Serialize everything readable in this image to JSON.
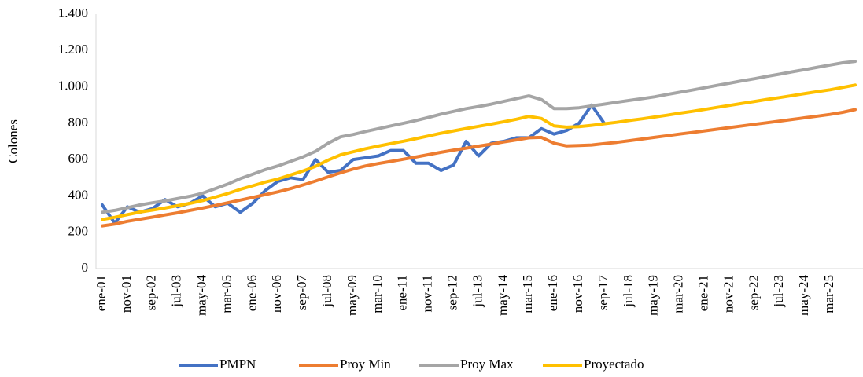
{
  "chart_data": {
    "type": "line",
    "ylabel": "Colones",
    "categories": [
      "ene-01",
      null,
      "nov-01",
      null,
      "sep-02",
      null,
      "jul-03",
      null,
      "may-04",
      null,
      "mar-05",
      null,
      "ene-06",
      null,
      "nov-06",
      null,
      "sep-07",
      null,
      "jul-08",
      null,
      "may-09",
      null,
      "mar-10",
      null,
      "ene-11",
      null,
      "nov-11",
      null,
      "sep-12",
      null,
      "jul-13",
      null,
      "may-14",
      null,
      "mar-15",
      null,
      "ene-16",
      null,
      "nov-16",
      null,
      "sep-17",
      null,
      "jul-18",
      null,
      "may-19",
      null,
      "mar-20",
      null,
      "ene-21",
      null,
      "nov-21",
      null,
      "sep-22",
      null,
      "jul-23",
      null,
      "may-24",
      null,
      "mar-25",
      null,
      null
    ],
    "series": [
      {
        "name": "PMPN",
        "color": "#4472c4",
        "values": [
          350,
          250,
          340,
          310,
          330,
          380,
          340,
          360,
          400,
          340,
          360,
          310,
          360,
          430,
          480,
          500,
          490,
          600,
          530,
          540,
          600,
          610,
          620,
          650,
          650,
          580,
          580,
          540,
          570,
          700,
          620,
          690,
          700,
          720,
          720,
          770,
          740,
          760,
          800,
          900,
          800,
          null,
          null,
          null,
          null,
          null,
          null,
          null,
          null,
          null,
          null,
          null,
          null,
          null,
          null,
          null,
          null,
          null,
          null,
          null,
          null
        ]
      },
      {
        "name": "Proy Min",
        "color": "#ed7d31",
        "values": [
          235,
          245,
          260,
          272,
          283,
          295,
          307,
          320,
          333,
          347,
          362,
          377,
          392,
          407,
          422,
          440,
          460,
          482,
          505,
          527,
          548,
          565,
          578,
          590,
          602,
          614,
          627,
          640,
          652,
          663,
          674,
          685,
          697,
          708,
          720,
          722,
          690,
          675,
          677,
          680,
          688,
          695,
          704,
          713,
          722,
          731,
          740,
          749,
          758,
          767,
          776,
          785,
          794,
          803,
          812,
          821,
          830,
          839,
          848,
          860,
          875
        ]
      },
      {
        "name": "Proy Max",
        "color": "#a5a5a5",
        "values": [
          310,
          320,
          335,
          350,
          362,
          372,
          385,
          398,
          415,
          440,
          465,
          495,
          520,
          545,
          565,
          590,
          615,
          645,
          690,
          725,
          738,
          755,
          770,
          785,
          800,
          815,
          832,
          850,
          865,
          880,
          892,
          905,
          920,
          935,
          950,
          930,
          880,
          880,
          885,
          895,
          905,
          915,
          925,
          935,
          945,
          958,
          970,
          982,
          995,
          1008,
          1020,
          1033,
          1045,
          1058,
          1070,
          1083,
          1095,
          1108,
          1120,
          1132,
          1140
        ]
      },
      {
        "name": "Proyectado",
        "color": "#ffc000",
        "values": [
          270,
          282,
          297,
          311,
          322,
          333,
          346,
          359,
          374,
          393,
          413,
          436,
          456,
          476,
          493,
          515,
          537,
          563,
          597,
          626,
          643,
          660,
          674,
          688,
          701,
          715,
          730,
          745,
          758,
          771,
          783,
          795,
          808,
          822,
          838,
          826,
          785,
          778,
          781,
          788,
          797,
          805,
          815,
          824,
          834,
          844,
          855,
          865,
          876,
          887,
          898,
          909,
          920,
          931,
          941,
          952,
          963,
          974,
          984,
          997,
          1010
        ]
      }
    ],
    "ylim": [
      0,
      1400
    ],
    "yticks": [
      0,
      200,
      400,
      600,
      800,
      {
        "value": 1000,
        "label": "1.000"
      },
      {
        "value": 1200,
        "label": "1.200"
      },
      {
        "value": 1400,
        "label": "1.400"
      }
    ],
    "grid": false,
    "legend": "bottom"
  }
}
